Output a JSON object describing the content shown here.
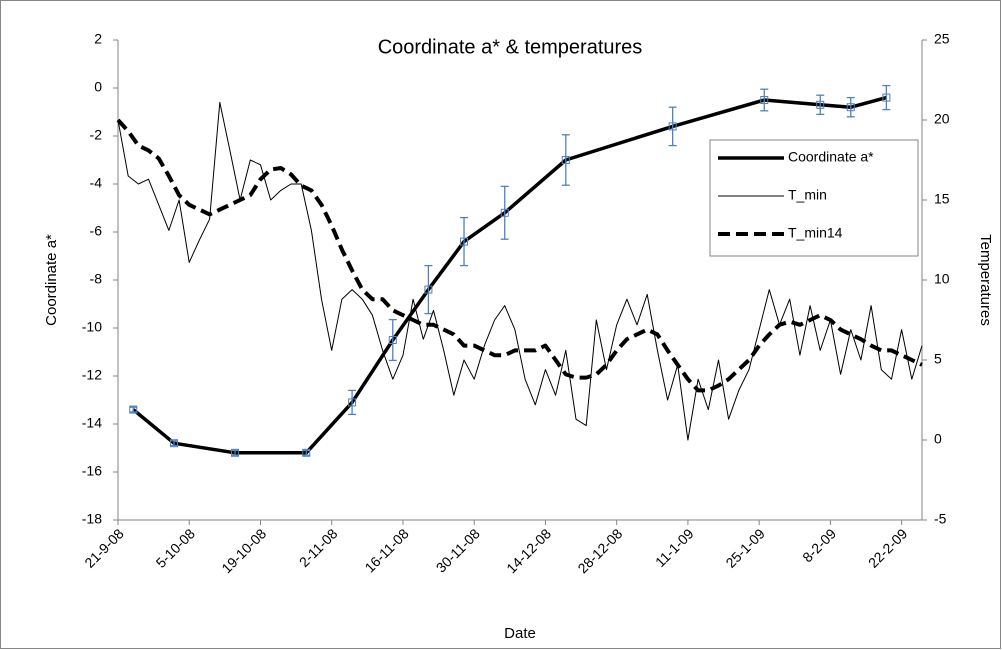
{
  "chart_data": {
    "type": "line",
    "title": "Coordinate a* & temperatures",
    "xlabel": "Date",
    "ylabel": "Coordinate a*",
    "y2label": "Temperatures",
    "xlim": [
      "2008-09-21",
      "2009-02-26"
    ],
    "xticks": [
      {
        "value": "2008-09-21",
        "label": "21-9-08"
      },
      {
        "value": "2008-10-05",
        "label": "5-10-08"
      },
      {
        "value": "2008-10-19",
        "label": "19-10-08"
      },
      {
        "value": "2008-11-02",
        "label": "2-11-08"
      },
      {
        "value": "2008-11-16",
        "label": "16-11-08"
      },
      {
        "value": "2008-11-30",
        "label": "30-11-08"
      },
      {
        "value": "2008-12-14",
        "label": "14-12-08"
      },
      {
        "value": "2008-12-28",
        "label": "28-12-08"
      },
      {
        "value": "2009-01-11",
        "label": "11-1-09"
      },
      {
        "value": "2009-01-25",
        "label": "25-1-09"
      },
      {
        "value": "2009-02-08",
        "label": "8-2-09"
      },
      {
        "value": "2009-02-22",
        "label": "22-2-09"
      }
    ],
    "ylim": [
      -18,
      2
    ],
    "yticks": [
      -18,
      -16,
      -14,
      -12,
      -10,
      -8,
      -6,
      -4,
      -2,
      0,
      2
    ],
    "y2lim": [
      -5,
      25
    ],
    "y2ticks": [
      -5,
      0,
      5,
      10,
      15,
      20,
      25
    ],
    "grid": false,
    "legend": "right",
    "x": [
      "2008-09-21",
      "2008-09-23",
      "2008-09-25",
      "2008-09-27",
      "2008-09-29",
      "2008-10-01",
      "2008-10-03",
      "2008-10-05",
      "2008-10-07",
      "2008-10-09",
      "2008-10-11",
      "2008-10-13",
      "2008-10-15",
      "2008-10-17",
      "2008-10-19",
      "2008-10-21",
      "2008-10-23",
      "2008-10-25",
      "2008-10-27",
      "2008-10-29",
      "2008-10-31",
      "2008-11-02",
      "2008-11-04",
      "2008-11-06",
      "2008-11-08",
      "2008-11-10",
      "2008-11-12",
      "2008-11-14",
      "2008-11-16",
      "2008-11-18",
      "2008-11-20",
      "2008-11-22",
      "2008-11-24",
      "2008-11-26",
      "2008-11-28",
      "2008-11-30",
      "2008-12-02",
      "2008-12-04",
      "2008-12-06",
      "2008-12-08",
      "2008-12-10",
      "2008-12-12",
      "2008-12-14",
      "2008-12-16",
      "2008-12-18",
      "2008-12-20",
      "2008-12-22",
      "2008-12-24",
      "2008-12-26",
      "2008-12-28",
      "2008-12-30",
      "2009-01-01",
      "2009-01-03",
      "2009-01-05",
      "2009-01-07",
      "2009-01-09",
      "2009-01-11",
      "2009-01-13",
      "2009-01-15",
      "2009-01-17",
      "2009-01-19",
      "2009-01-21",
      "2009-01-23",
      "2009-01-25",
      "2009-01-27",
      "2009-01-29",
      "2009-01-31",
      "2009-02-02",
      "2009-02-04",
      "2009-02-06",
      "2009-02-08",
      "2009-02-10",
      "2009-02-12",
      "2009-02-14",
      "2009-02-16",
      "2009-02-18",
      "2009-02-20",
      "2009-02-22",
      "2009-02-24",
      "2009-02-26"
    ],
    "series": [
      {
        "name": "Coordinate a*",
        "color": "#000000",
        "width": 3.5,
        "marker_color": "#4f81bd",
        "error_color": "#4f81bd",
        "x": [
          "2008-09-24",
          "2008-10-02",
          "2008-10-14",
          "2008-10-28",
          "2008-11-06",
          "2008-11-14",
          "2008-11-21",
          "2008-11-28",
          "2008-12-06",
          "2008-12-18",
          "2009-01-08",
          "2009-01-26",
          "2009-02-06",
          "2009-02-12",
          "2009-02-19"
        ],
        "values": [
          -13.4,
          -14.8,
          -15.2,
          -15.2,
          -13.1,
          -10.5,
          -8.4,
          -6.4,
          -5.2,
          -3,
          -1.6,
          -0.5,
          -0.7,
          -0.8,
          -0.4
        ],
        "errors": [
          0.1,
          0.1,
          0.1,
          0.1,
          0.5,
          0.85,
          1,
          1,
          1.1,
          1.05,
          0.8,
          0.45,
          0.4,
          0.4,
          0.5
        ]
      },
      {
        "name": "T_min",
        "color": "#000000",
        "width": 1,
        "axis": "y2",
        "values": [
          20,
          16.5,
          16,
          16.3,
          14.7,
          13.1,
          15,
          11.1,
          12.5,
          13.8,
          21.1,
          18.1,
          15,
          17.5,
          17.2,
          15,
          15.6,
          16,
          16,
          13.1,
          8.8,
          5.6,
          8.8,
          9.4,
          8.8,
          7.8,
          5.6,
          3.8,
          5.3,
          8.8,
          6.3,
          8.1,
          5.6,
          2.8,
          5,
          3.8,
          5.9,
          7.5,
          8.4,
          6.9,
          3.8,
          2.2,
          4.4,
          2.8,
          5.6,
          1.3,
          0.9,
          7.5,
          4.4,
          7.2,
          8.8,
          7.2,
          9.1,
          5.6,
          2.5,
          4.7,
          0,
          3.8,
          1.9,
          5,
          1.3,
          3.1,
          4.4,
          6.9,
          9.4,
          7.2,
          8.8,
          5.3,
          8.4,
          5.6,
          7.5,
          4.1,
          6.9,
          5,
          8.4,
          4.4,
          3.8,
          6.9,
          3.8,
          5.9
        ]
      },
      {
        "name": "T_min14",
        "color": "#000000",
        "width": 4,
        "dash": "12 6",
        "axis": "y2",
        "values": [
          20,
          19.3,
          18.4,
          18.1,
          17.6,
          16.5,
          15.3,
          14.7,
          14.4,
          14.1,
          14.4,
          14.7,
          15,
          15.3,
          16.3,
          16.9,
          17,
          16.6,
          15.9,
          15.6,
          14.7,
          13.4,
          11.9,
          10.6,
          9.4,
          8.8,
          8.8,
          8.1,
          7.8,
          7.5,
          7.2,
          7.2,
          6.9,
          6.6,
          5.9,
          5.9,
          5.6,
          5.3,
          5.3,
          5.6,
          5.6,
          5.6,
          5.9,
          5,
          4.1,
          3.9,
          3.9,
          4.1,
          4.7,
          5.6,
          6.3,
          6.6,
          6.9,
          6.6,
          5.6,
          4.7,
          3.8,
          3.1,
          3.1,
          3.4,
          3.8,
          4.4,
          5,
          5.9,
          6.6,
          7.2,
          7.4,
          7.2,
          7.5,
          7.8,
          7.5,
          6.9,
          6.6,
          6.3,
          5.9,
          5.6,
          5.6,
          5.3,
          5,
          4.7
        ]
      }
    ]
  }
}
